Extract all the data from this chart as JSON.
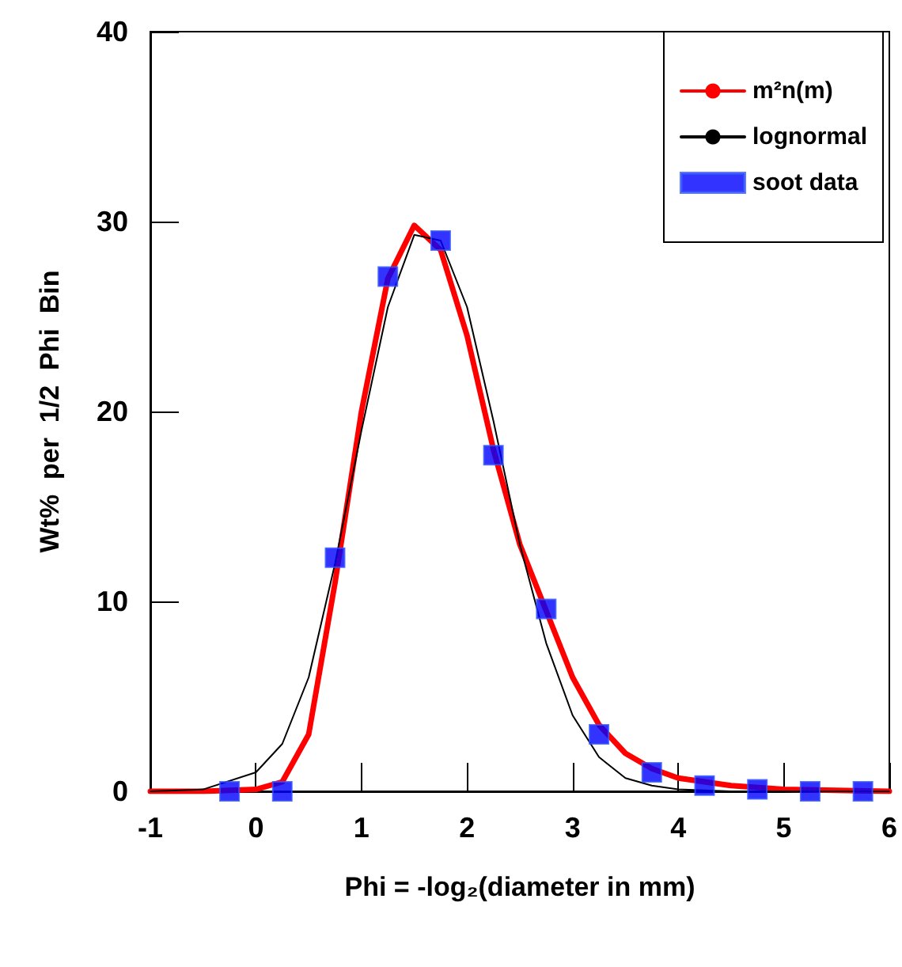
{
  "chart_data": {
    "type": "line",
    "xlabel": "Phi = -log₂(diameter in mm)",
    "ylabel": "Wt%  per  1/2  Phi  Bin",
    "xlim": [
      -1,
      6
    ],
    "xticks": [
      -1,
      0,
      1,
      2,
      3,
      4,
      5,
      6
    ],
    "ylim": [
      0,
      40
    ],
    "yticks": [
      0,
      10,
      20,
      30,
      40
    ],
    "grid": false,
    "legend": "top right",
    "series": [
      {
        "name": "m²n(m)",
        "color": "#ff0000",
        "x": [
          -1,
          -0.5,
          0,
          0.25,
          0.5,
          0.75,
          1,
          1.25,
          1.5,
          1.75,
          2,
          2.25,
          2.5,
          2.75,
          3,
          3.25,
          3.5,
          3.75,
          4,
          4.5,
          5,
          6
        ],
        "values": [
          0,
          0,
          0.1,
          0.5,
          3,
          11,
          20,
          27,
          29.8,
          28.5,
          24,
          18,
          13,
          9.5,
          6,
          3.5,
          2,
          1.2,
          0.7,
          0.3,
          0.1,
          0
        ]
      },
      {
        "name": "lognormal",
        "color": "#000000",
        "x": [
          -1,
          -0.5,
          0,
          0.25,
          0.5,
          0.75,
          1,
          1.25,
          1.5,
          1.75,
          2,
          2.25,
          2.5,
          2.75,
          3,
          3.25,
          3.5,
          3.75,
          4,
          4.5,
          6
        ],
        "values": [
          0,
          0.1,
          1,
          2.5,
          6,
          12,
          19,
          25.5,
          29.3,
          29,
          25.5,
          19.5,
          13,
          7.8,
          4,
          1.8,
          0.7,
          0.3,
          0.1,
          0,
          0
        ]
      },
      {
        "name": "soot data",
        "type": "scatter",
        "marker": "square",
        "color": "#0000ff",
        "x": [
          -0.25,
          0.25,
          0.75,
          1.25,
          1.75,
          2.25,
          2.75,
          3.25,
          3.75,
          4.25,
          4.75,
          5.25,
          5.75
        ],
        "values": [
          0,
          0,
          12.3,
          27.1,
          29,
          17.7,
          9.6,
          3,
          1,
          0.3,
          0.1,
          0,
          0
        ]
      }
    ]
  }
}
